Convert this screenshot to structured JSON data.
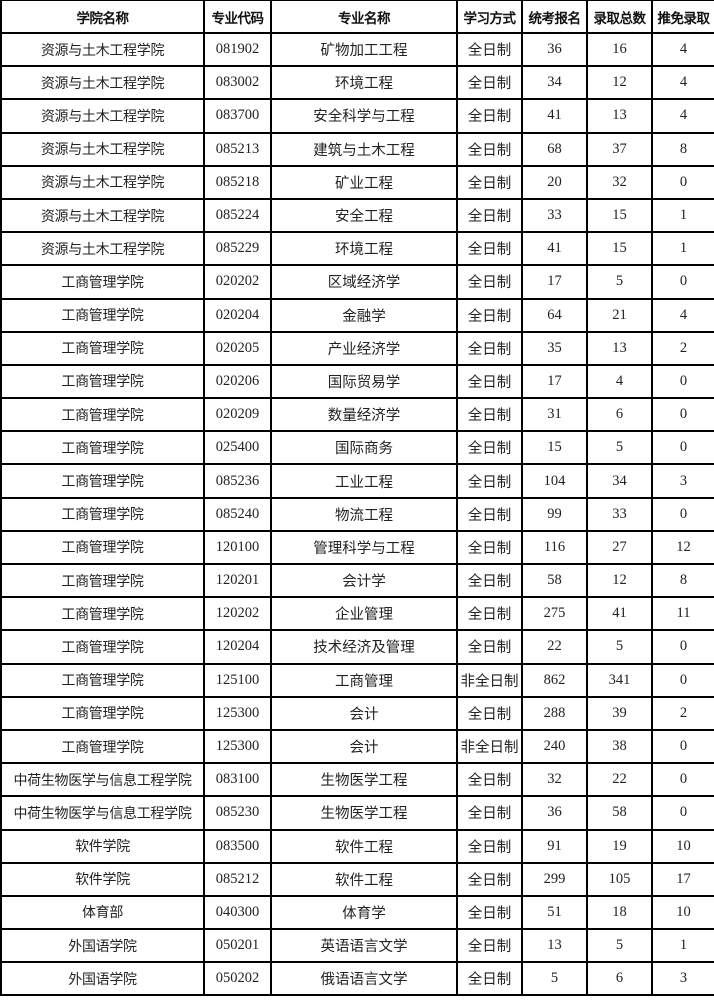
{
  "headers": [
    "学院名称",
    "专业代码",
    "专业名称",
    "学习方式",
    "统考报名",
    "录取总数",
    "推免录取"
  ],
  "rows": [
    [
      "资源与土木工程学院",
      "081902",
      "矿物加工工程",
      "全日制",
      "36",
      "16",
      "4"
    ],
    [
      "资源与土木工程学院",
      "083002",
      "环境工程",
      "全日制",
      "34",
      "12",
      "4"
    ],
    [
      "资源与土木工程学院",
      "083700",
      "安全科学与工程",
      "全日制",
      "41",
      "13",
      "4"
    ],
    [
      "资源与土木工程学院",
      "085213",
      "建筑与土木工程",
      "全日制",
      "68",
      "37",
      "8"
    ],
    [
      "资源与土木工程学院",
      "085218",
      "矿业工程",
      "全日制",
      "20",
      "32",
      "0"
    ],
    [
      "资源与土木工程学院",
      "085224",
      "安全工程",
      "全日制",
      "33",
      "15",
      "1"
    ],
    [
      "资源与土木工程学院",
      "085229",
      "环境工程",
      "全日制",
      "41",
      "15",
      "1"
    ],
    [
      "工商管理学院",
      "020202",
      "区域经济学",
      "全日制",
      "17",
      "5",
      "0"
    ],
    [
      "工商管理学院",
      "020204",
      "金融学",
      "全日制",
      "64",
      "21",
      "4"
    ],
    [
      "工商管理学院",
      "020205",
      "产业经济学",
      "全日制",
      "35",
      "13",
      "2"
    ],
    [
      "工商管理学院",
      "020206",
      "国际贸易学",
      "全日制",
      "17",
      "4",
      "0"
    ],
    [
      "工商管理学院",
      "020209",
      "数量经济学",
      "全日制",
      "31",
      "6",
      "0"
    ],
    [
      "工商管理学院",
      "025400",
      "国际商务",
      "全日制",
      "15",
      "5",
      "0"
    ],
    [
      "工商管理学院",
      "085236",
      "工业工程",
      "全日制",
      "104",
      "34",
      "3"
    ],
    [
      "工商管理学院",
      "085240",
      "物流工程",
      "全日制",
      "99",
      "33",
      "0"
    ],
    [
      "工商管理学院",
      "120100",
      "管理科学与工程",
      "全日制",
      "116",
      "27",
      "12"
    ],
    [
      "工商管理学院",
      "120201",
      "会计学",
      "全日制",
      "58",
      "12",
      "8"
    ],
    [
      "工商管理学院",
      "120202",
      "企业管理",
      "全日制",
      "275",
      "41",
      "11"
    ],
    [
      "工商管理学院",
      "120204",
      "技术经济及管理",
      "全日制",
      "22",
      "5",
      "0"
    ],
    [
      "工商管理学院",
      "125100",
      "工商管理",
      "非全日制",
      "862",
      "341",
      "0"
    ],
    [
      "工商管理学院",
      "125300",
      "会计",
      "全日制",
      "288",
      "39",
      "2"
    ],
    [
      "工商管理学院",
      "125300",
      "会计",
      "非全日制",
      "240",
      "38",
      "0"
    ],
    [
      "中荷生物医学与信息工程学院",
      "083100",
      "生物医学工程",
      "全日制",
      "32",
      "22",
      "0"
    ],
    [
      "中荷生物医学与信息工程学院",
      "085230",
      "生物医学工程",
      "全日制",
      "36",
      "58",
      "0"
    ],
    [
      "软件学院",
      "083500",
      "软件工程",
      "全日制",
      "91",
      "19",
      "10"
    ],
    [
      "软件学院",
      "085212",
      "软件工程",
      "全日制",
      "299",
      "105",
      "17"
    ],
    [
      "体育部",
      "040300",
      "体育学",
      "全日制",
      "51",
      "18",
      "10"
    ],
    [
      "外国语学院",
      "050201",
      "英语语言文学",
      "全日制",
      "13",
      "5",
      "1"
    ],
    [
      "外国语学院",
      "050202",
      "俄语语言文学",
      "全日制",
      "5",
      "6",
      "3"
    ]
  ]
}
